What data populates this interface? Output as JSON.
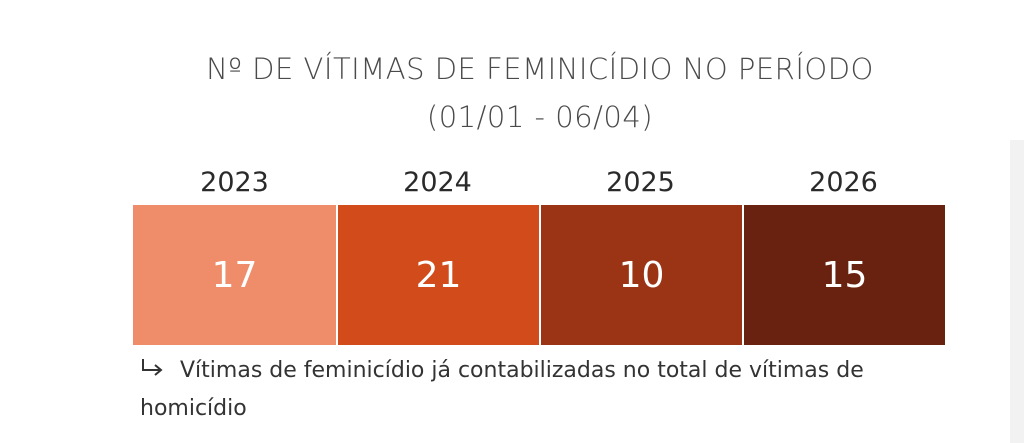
{
  "header": {
    "title": "Nº DE VÍTIMAS DE FEMINICÍDIO NO PERÍODO",
    "subtitle": "(01/01 - 06/04)"
  },
  "cells": [
    {
      "year": "2023",
      "value": "17",
      "color": "#ef8c6a"
    },
    {
      "year": "2024",
      "value": "21",
      "color": "#d24b1a"
    },
    {
      "year": "2025",
      "value": "10",
      "color": "#9b3415"
    },
    {
      "year": "2026",
      "value": "15",
      "color": "#6a2210"
    }
  ],
  "note": "Vítimas de feminicídio já contabilizadas no total de vítimas de homicídio"
}
